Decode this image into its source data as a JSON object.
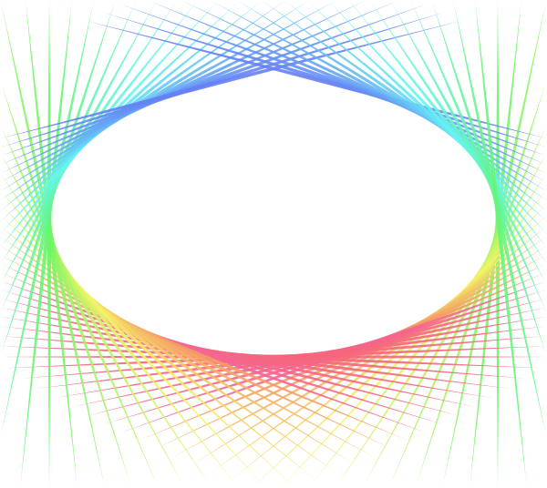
{
  "artwork": {
    "kind": "tangent-line envelope pattern",
    "background": "#ffffff",
    "palette": {
      "bottom": "#f06a7a",
      "lower_sides": "#f7f56a",
      "sides": "#6ef56a",
      "upper_sides": "#5ef0f0",
      "top": "#6f7ff5"
    }
  }
}
